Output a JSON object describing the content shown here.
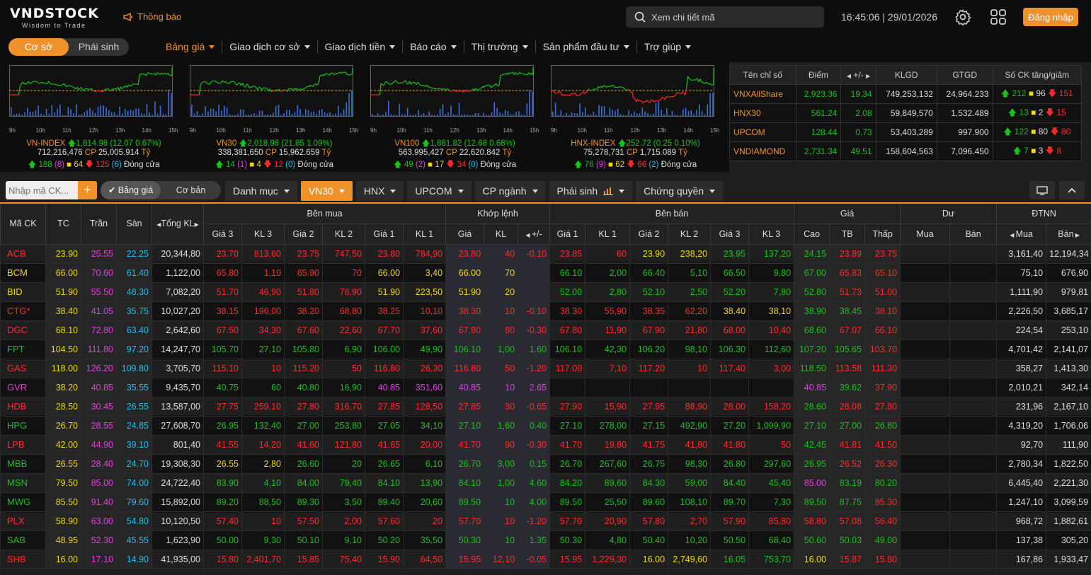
{
  "header": {
    "logo": "VNDSTOCK",
    "tagline": "Wisdom to Trade",
    "notification": "Thông báo",
    "search_placeholder": "Xem chi tiết mã",
    "clock": "16:45:06 | 29/01/2026",
    "login": "Đăng nhập",
    "mode_tabs": [
      "Cơ sở",
      "Phái sinh"
    ],
    "nav": [
      "Bảng giá",
      "Giao dịch cơ sở",
      "Giao dịch tiền",
      "Báo cáo",
      "Thị trường",
      "Sản phẩm đầu tư",
      "Trợ giúp"
    ]
  },
  "colors": {
    "up": "#19c219",
    "down": "#ff2b2b",
    "ref": "#f0d80a",
    "ceil": "#e43de4",
    "floor": "#25bcf0",
    "accent": "#f0922a"
  },
  "x_ticks": [
    "9h",
    "10h",
    "11h",
    "12h",
    "13h",
    "14h",
    "15h"
  ],
  "mini_charts": [
    {
      "name": "VN-INDEX",
      "value": "1,814.98",
      "change": "(12.07 0.67%)",
      "dir": "up",
      "volume": "712,216,476",
      "value_label": "CP",
      "amount": "25,005.914",
      "unit": "Tỷ",
      "up": "188",
      "ceil": "(8)",
      "ref": "64",
      "down": "125",
      "floor": "(6)",
      "status": "Đóng cửa"
    },
    {
      "name": "VN30",
      "value": "2,018.98",
      "change": "(21.85 1.09%)",
      "dir": "up",
      "volume": "338,381,650",
      "value_label": "CP",
      "amount": "15,962.659",
      "unit": "Tỷ",
      "up": "14",
      "ceil": "(1)",
      "ref": "4",
      "down": "12",
      "floor": "(0)",
      "status": "Đóng cửa"
    },
    {
      "name": "VN100",
      "value": "1,881.82",
      "change": "(12.68 0.68%)",
      "dir": "up",
      "volume": "563,995,427",
      "value_label": "CP",
      "amount": "22,620.842",
      "unit": "Tỷ",
      "up": "49",
      "ceil": "(2)",
      "ref": "17",
      "down": "34",
      "floor": "(0)",
      "status": "Đóng cửa"
    },
    {
      "name": "HNX-INDEX",
      "value": "252.72",
      "change": "(0.25 0.10%)",
      "dir": "up",
      "volume": "75,278,731",
      "value_label": "CP",
      "amount": "1,715.089",
      "unit": "Tỷ",
      "up": "76",
      "ceil": "(9)",
      "ref": "62",
      "down": "66",
      "floor": "(2)",
      "status": "Đóng cửa"
    }
  ],
  "index_table": {
    "headers": [
      "Tên chỉ số",
      "Điểm",
      "+/-",
      "KLGD",
      "GTGD",
      "Số CK tăng/giảm"
    ],
    "rows": [
      {
        "name": "VNXAllShare",
        "point": "2,923.36",
        "chg": "19.34",
        "vol": "749,253,132",
        "val": "24,964.233",
        "up": "212",
        "ref": "96",
        "down": "151"
      },
      {
        "name": "HNX30",
        "point": "561.24",
        "chg": "2.08",
        "vol": "59,849,570",
        "val": "1,532.489",
        "up": "13",
        "ref": "2",
        "down": "15"
      },
      {
        "name": "UPCOM",
        "point": "128.44",
        "chg": "0.73",
        "vol": "53,403,289",
        "val": "997.900",
        "up": "122",
        "ref": "80",
        "down": "80"
      },
      {
        "name": "VNDIAMOND",
        "point": "2,731.34",
        "chg": "49.51",
        "vol": "158,604,563",
        "val": "7,096.450",
        "up": "7",
        "ref": "3",
        "down": "8"
      }
    ]
  },
  "filter": {
    "input_placeholder": "Nhập mã CK...",
    "plus": "+",
    "view_toggle": [
      "Bảng giá",
      "Cơ bản"
    ],
    "tabs": [
      "Danh mục",
      "VN30",
      "HNX",
      "UPCOM",
      "CP ngành",
      "Phái sinh",
      "Chứng quyền"
    ]
  },
  "board": {
    "group_headers": [
      "Bên mua",
      "Khớp lệnh",
      "Bên bán",
      "Giá",
      "Dư",
      "ĐTNN"
    ],
    "headers": [
      "Mã CK",
      "TC",
      "Trần",
      "Sàn",
      "Tổng KL",
      "Giá 3",
      "KL 3",
      "Giá 2",
      "KL 2",
      "Giá 1",
      "KL 1",
      "Giá",
      "KL",
      "+/-",
      "Giá 1",
      "KL 1",
      "Giá 2",
      "KL 2",
      "Giá 3",
      "KL 3",
      "Cao",
      "TB",
      "Thấp",
      "Mua",
      "Bán",
      "Mua",
      "Bán"
    ],
    "rows": [
      [
        "ACB",
        "23.90",
        "25.55",
        "22.25",
        "20,344,80",
        "23.70",
        "813,60",
        "23.75",
        "747,50",
        "23.80",
        "784,90",
        "23.80",
        "40",
        "-0.10",
        "23.85",
        "60",
        "23.90",
        "238,20",
        "23.95",
        "137,20",
        "24.15",
        "23.89",
        "23.75",
        "",
        "",
        "3,161,40",
        "12,194,34"
      ],
      [
        "BCM",
        "66.00",
        "70.60",
        "61.40",
        "1,122,00",
        "65.80",
        "1,10",
        "65.90",
        "70",
        "66.00",
        "3,40",
        "66.00",
        "70",
        "",
        "66.10",
        "2,00",
        "66.40",
        "5,10",
        "66.50",
        "9,80",
        "67.00",
        "65.83",
        "65.10",
        "",
        "",
        "75,10",
        "676,90"
      ],
      [
        "BID",
        "51.90",
        "55.50",
        "48.30",
        "7,082,20",
        "51.70",
        "46,90",
        "51.80",
        "76,90",
        "51.90",
        "223,50",
        "51.90",
        "20",
        "",
        "52.00",
        "2,80",
        "52.10",
        "2,50",
        "52.20",
        "7,80",
        "52.80",
        "51.73",
        "51.00",
        "",
        "",
        "1,111,90",
        "979,81"
      ],
      [
        "CTG*",
        "38.40",
        "41.05",
        "35.75",
        "10,027,20",
        "38.15",
        "196,00",
        "38.20",
        "68,80",
        "38.25",
        "10,10",
        "38.30",
        "10",
        "-0.10",
        "38.30",
        "55,90",
        "38.35",
        "62,20",
        "38.40",
        "38,10",
        "38.90",
        "38.45",
        "38.10",
        "",
        "",
        "2,226,50",
        "3,685,17"
      ],
      [
        "DGC",
        "68.10",
        "72.80",
        "63.40",
        "2,642,60",
        "67.50",
        "34,30",
        "67.60",
        "22,60",
        "67.70",
        "37,60",
        "67.80",
        "80",
        "-0.30",
        "67.80",
        "11,90",
        "67.90",
        "21,80",
        "68.00",
        "10,40",
        "68.60",
        "67.07",
        "66.10",
        "",
        "",
        "224,54",
        "253,10"
      ],
      [
        "FPT",
        "104.50",
        "111.80",
        "97.20",
        "14,247,70",
        "105.70",
        "27,10",
        "105.80",
        "6,90",
        "106.00",
        "49,90",
        "106.10",
        "1,00",
        "1.60",
        "106.10",
        "42,30",
        "106.20",
        "98,10",
        "106.30",
        "112,60",
        "107.20",
        "105.65",
        "103.70",
        "",
        "",
        "4,701,42",
        "2,141,07"
      ],
      [
        "GAS",
        "118.00",
        "126.20",
        "109.80",
        "3,705,70",
        "115.10",
        "10",
        "115.20",
        "50",
        "116.80",
        "26,30",
        "116.80",
        "50",
        "-1.20",
        "117.00",
        "7,10",
        "117.20",
        "10",
        "117.40",
        "3,00",
        "118.50",
        "113.58",
        "111.30",
        "",
        "",
        "358,27",
        "1,413,30"
      ],
      [
        "GVR",
        "38.20",
        "40.85",
        "35.55",
        "9,435,70",
        "40.75",
        "60",
        "40.80",
        "16,90",
        "40.85",
        "351,60",
        "40.85",
        "10",
        "2.65",
        "",
        "",
        "",
        "",
        "",
        "",
        "40.85",
        "39.62",
        "37.90",
        "",
        "",
        "2,010,21",
        "342,14"
      ],
      [
        "HDB",
        "28.50",
        "30.45",
        "26.55",
        "13,587,00",
        "27.75",
        "259,10",
        "27.80",
        "316,70",
        "27.85",
        "128,50",
        "27.85",
        "30",
        "-0.65",
        "27.90",
        "15,90",
        "27.95",
        "88,90",
        "28.00",
        "158,20",
        "28.60",
        "28.08",
        "27.80",
        "",
        "",
        "231,96",
        "2,167,10"
      ],
      [
        "HPG",
        "26.70",
        "28.55",
        "24.85",
        "27,608,70",
        "26.95",
        "132,40",
        "27.00",
        "253,80",
        "27.05",
        "34,10",
        "27.10",
        "1,60",
        "0.40",
        "27.10",
        "278,00",
        "27.15",
        "492,90",
        "27.20",
        "1,099,90",
        "27.10",
        "27.00",
        "26.80",
        "",
        "",
        "4,319,20",
        "1,706,06"
      ],
      [
        "LPB",
        "42.00",
        "44.90",
        "39.10",
        "801,40",
        "41.55",
        "14,20",
        "41.60",
        "121,80",
        "41.65",
        "20,00",
        "41.70",
        "90",
        "-0.30",
        "41.70",
        "19,80",
        "41.75",
        "41,80",
        "41.80",
        "50",
        "42.45",
        "41.81",
        "41.50",
        "",
        "",
        "92,70",
        "111,90"
      ],
      [
        "MBB",
        "26.55",
        "28.40",
        "24.70",
        "19,308,30",
        "26.55",
        "2,80",
        "26.60",
        "20",
        "26.65",
        "6,10",
        "26.70",
        "3,00",
        "0.15",
        "26.70",
        "267,60",
        "26.75",
        "98,30",
        "26.80",
        "297,60",
        "26.95",
        "26.52",
        "26.30",
        "",
        "",
        "2,780,34",
        "1,822,50"
      ],
      [
        "MSN",
        "79.50",
        "85.00",
        "74.00",
        "24,722,40",
        "83.90",
        "4,10",
        "84.00",
        "79,40",
        "84.10",
        "13,90",
        "84.10",
        "1,00",
        "4.60",
        "84.20",
        "89,60",
        "84.30",
        "59,00",
        "84.40",
        "45,40",
        "85.00",
        "83.19",
        "80.20",
        "",
        "",
        "6,445,40",
        "2,221,30"
      ],
      [
        "MWG",
        "85.50",
        "91.40",
        "79.60",
        "15,892,00",
        "89.20",
        "88,50",
        "89.30",
        "3,50",
        "89.40",
        "20,60",
        "89.50",
        "10",
        "4.00",
        "89.50",
        "25,50",
        "89.60",
        "108,10",
        "89.70",
        "7,30",
        "89.50",
        "87.75",
        "85.30",
        "",
        "",
        "1,247,10",
        "3,099,59"
      ],
      [
        "PLX",
        "58.90",
        "63.00",
        "54.80",
        "10,120,50",
        "57.40",
        "10",
        "57.50",
        "2,00",
        "57.60",
        "20",
        "57.70",
        "10",
        "-1.20",
        "57.70",
        "20,90",
        "57.80",
        "2,70",
        "57.90",
        "85,80",
        "58.80",
        "57.08",
        "56.40",
        "",
        "",
        "968,72",
        "1,882,61"
      ],
      [
        "SAB",
        "48.95",
        "52.30",
        "45.55",
        "1,623,90",
        "50.00",
        "9,30",
        "50.10",
        "9,10",
        "50.20",
        "35,50",
        "50.30",
        "10",
        "1.35",
        "50.30",
        "4,80",
        "50.40",
        "10,20",
        "50.50",
        "68,40",
        "50.60",
        "50.03",
        "49.00",
        "",
        "",
        "137,38",
        "305,20"
      ],
      [
        "SHB",
        "16.00",
        "17.10",
        "14.90",
        "41,935,00",
        "15.80",
        "2,401,70",
        "15.85",
        "75,40",
        "15.90",
        "64,50",
        "15.95",
        "12,10",
        "-0.05",
        "15.95",
        "1,229,30",
        "16.00",
        "2,749,60",
        "16.05",
        "753,70",
        "16.00",
        "15.87",
        "15.80",
        "",
        "",
        "167,86",
        "1,933,47"
      ]
    ]
  }
}
